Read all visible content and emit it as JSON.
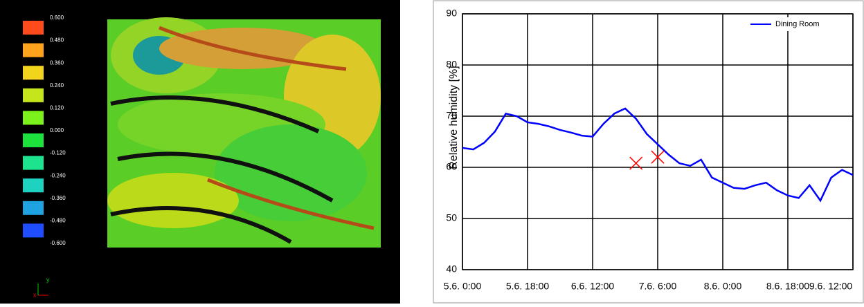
{
  "colormap": {
    "labels": [
      "0.600",
      "0.480",
      "0.360",
      "0.240",
      "0.120",
      "0.000",
      "-0.120",
      "-0.240",
      "-0.360",
      "-0.480",
      "-0.600"
    ],
    "colors": [
      "#ff4a1c",
      "#ffa21c",
      "#f2d41c",
      "#c6e61c",
      "#7cf21c",
      "#1ee23c",
      "#1ee38e",
      "#1ed2c0",
      "#1ea2e2",
      "#1e4eff"
    ],
    "axes": [
      "x",
      "y"
    ]
  },
  "chart_data": {
    "type": "line",
    "ylabel": "Relative humidity [%]",
    "x": [
      "5.6. 0:00",
      "5.6. 3:00",
      "5.6. 6:00",
      "5.6. 9:00",
      "5.6. 12:00",
      "5.6. 15:00",
      "5.6. 18:00",
      "5.6. 21:00",
      "6.6. 0:00",
      "6.6. 3:00",
      "6.6. 6:00",
      "6.6. 9:00",
      "6.6. 12:00",
      "6.6. 15:00",
      "6.6. 18:00",
      "6.6. 21:00",
      "7.6. 0:00",
      "7.6. 3:00",
      "7.6. 6:00",
      "7.6. 9:00",
      "7.6. 12:00",
      "7.6. 15:00",
      "7.6. 18:00",
      "7.6. 21:00",
      "8.6. 0:00",
      "8.6. 3:00",
      "8.6. 6:00",
      "8.6. 9:00",
      "8.6. 12:00",
      "8.6. 15:00",
      "8.6. 18:00",
      "8.6. 21:00",
      "9.6. 0:00",
      "9.6. 3:00",
      "9.6. 6:00",
      "9.6. 9:00",
      "9.6. 12:00"
    ],
    "series": [
      {
        "name": "Dining Room",
        "color": "#0000ff",
        "values": [
          63.8,
          63.5,
          64.8,
          67,
          70.5,
          70,
          68.8,
          68.5,
          68,
          67.3,
          66.8,
          66.2,
          66,
          68.5,
          70.5,
          71.5,
          69.5,
          66.5,
          64.5,
          62.5,
          60.8,
          60.3,
          61.5,
          58,
          57,
          56,
          55.8,
          56.5,
          57,
          55.5,
          54.5,
          54,
          56.5,
          53.5,
          58,
          59.5,
          58.5
        ]
      }
    ],
    "markers": {
      "color": "#ff0000",
      "x": [
        "7.6. 0:00",
        "7.6. 6:00"
      ],
      "values": [
        60.8,
        62
      ]
    },
    "xlim": [
      "5.6. 0:00",
      "9.6. 12:00"
    ],
    "xticks": [
      "5.6. 0:00",
      "5.6. 18:00",
      "6.6. 12:00",
      "7.6. 6:00",
      "8.6. 0:00",
      "8.6. 18:00",
      "9.6. 12:00"
    ],
    "ylim": [
      40,
      90
    ],
    "yticks": [
      40,
      50,
      60,
      70,
      80,
      90
    ],
    "grid": true,
    "legend": "top-right"
  }
}
